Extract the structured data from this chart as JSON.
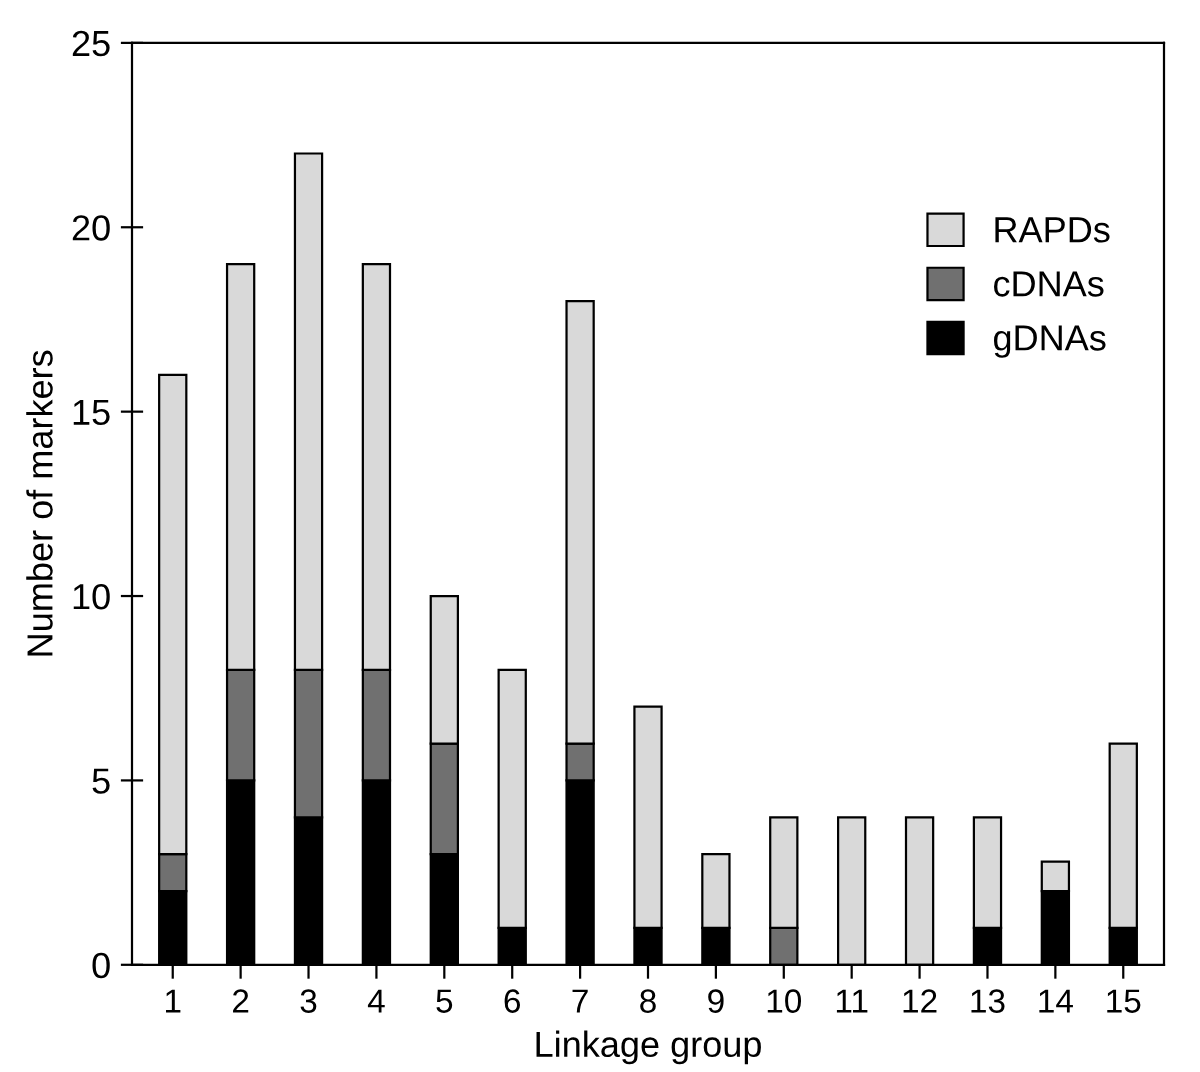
{
  "chart_data": {
    "type": "bar",
    "stacked": true,
    "xlabel": "Linkage group",
    "ylabel": "Number of markers",
    "categories": [
      "1",
      "2",
      "3",
      "4",
      "5",
      "6",
      "7",
      "8",
      "9",
      "10",
      "11",
      "12",
      "13",
      "14",
      "15"
    ],
    "series": [
      {
        "name": "gDNAs",
        "color": "#000000",
        "values": [
          2,
          5,
          4,
          5,
          3,
          1,
          5,
          1,
          1,
          0,
          0,
          0,
          1,
          2,
          1
        ]
      },
      {
        "name": "cDNAs",
        "color": "#707070",
        "values": [
          1,
          3,
          4,
          3,
          3,
          0,
          1,
          0,
          0,
          1,
          0,
          0,
          0,
          0,
          0
        ]
      },
      {
        "name": "RAPDs",
        "color": "#d9d9d9",
        "values": [
          13,
          11,
          14,
          11,
          4,
          7,
          12,
          6,
          2,
          3,
          4,
          4,
          3,
          0.8,
          5
        ]
      }
    ],
    "ylim": [
      0,
      25
    ],
    "yticks": [
      0,
      5,
      10,
      15,
      20,
      25
    ],
    "grid": false,
    "legend": "top right"
  }
}
